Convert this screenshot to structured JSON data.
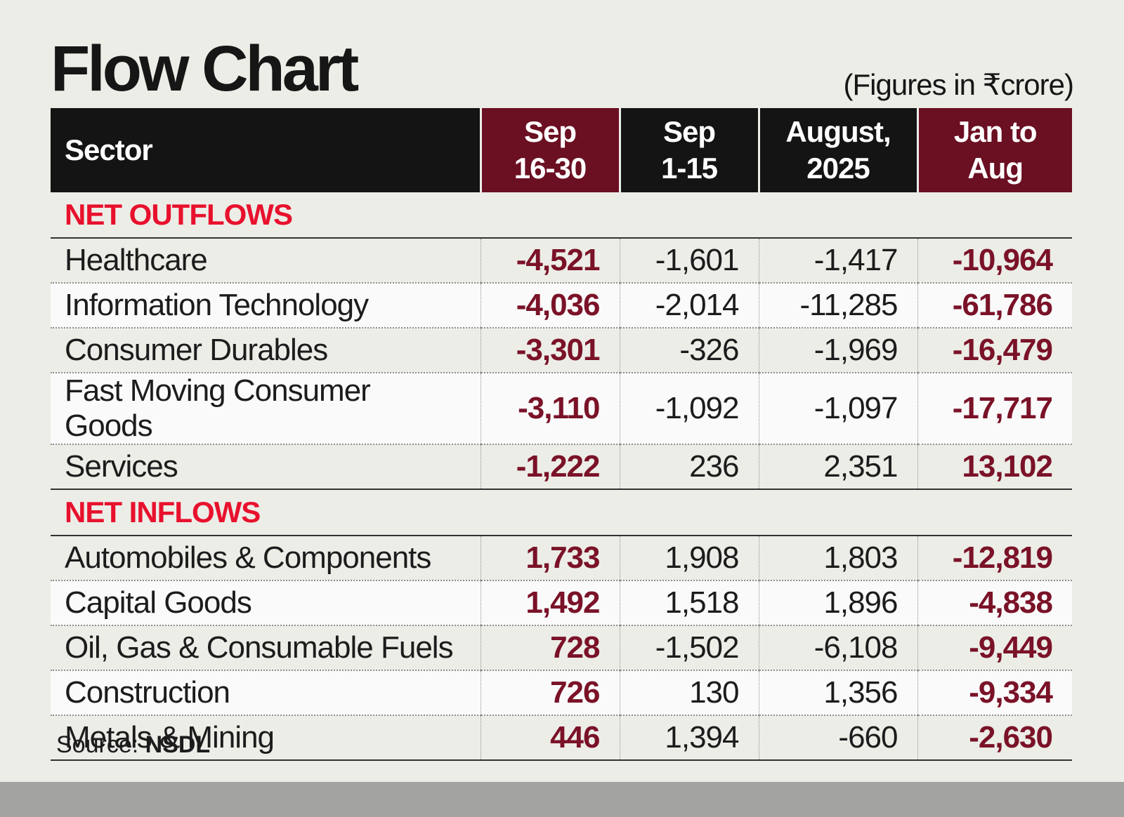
{
  "title": "Flow Chart",
  "units": "(Figures in ₹crore)",
  "chart_data": {
    "type": "table",
    "columns": [
      {
        "label_lines": [
          "Sector"
        ]
      },
      {
        "label_lines": [
          "Sep",
          "16-30"
        ]
      },
      {
        "label_lines": [
          "Sep",
          "1-15"
        ]
      },
      {
        "label_lines": [
          "August,",
          "2025"
        ]
      },
      {
        "label_lines": [
          "Jan to",
          "Aug"
        ]
      }
    ],
    "sections": [
      {
        "label": "NET OUTFLOWS",
        "rows": [
          {
            "sector": "Healthcare",
            "values": [
              "-4,521",
              "-1,601",
              "-1,417",
              "-10,964"
            ]
          },
          {
            "sector": "Information Technology",
            "values": [
              "-4,036",
              "-2,014",
              "-11,285",
              "-61,786"
            ]
          },
          {
            "sector": "Consumer Durables",
            "values": [
              "-3,301",
              "-326",
              "-1,969",
              "-16,479"
            ]
          },
          {
            "sector": "Fast Moving Consumer Goods",
            "values": [
              "-3,110",
              "-1,092",
              "-1,097",
              "-17,717"
            ]
          },
          {
            "sector": "Services",
            "values": [
              "-1,222",
              "236",
              "2,351",
              "13,102"
            ]
          }
        ]
      },
      {
        "label": "NET INFLOWS",
        "rows": [
          {
            "sector": "Automobiles & Components",
            "values": [
              "1,733",
              "1,908",
              "1,803",
              "-12,819"
            ]
          },
          {
            "sector": "Capital Goods",
            "values": [
              "1,492",
              "1,518",
              "1,896",
              "-4,838"
            ]
          },
          {
            "sector": "Oil, Gas & Consumable Fuels",
            "values": [
              "728",
              "-1,502",
              "-6,108",
              "-9,449"
            ]
          },
          {
            "sector": "Construction",
            "values": [
              "726",
              "130",
              "1,356",
              "-9,334"
            ]
          },
          {
            "sector": "Metals & Mining",
            "values": [
              "446",
              "1,394",
              "-660",
              "-2,630"
            ]
          }
        ]
      }
    ]
  },
  "source": {
    "label": "Source:",
    "value": "NSDL"
  },
  "colors": {
    "header_dark": "#141414",
    "header_accent": "#6b0f22",
    "section_label": "#e8112d",
    "emphasis_value": "#7a1228",
    "background": "#ecede7"
  }
}
